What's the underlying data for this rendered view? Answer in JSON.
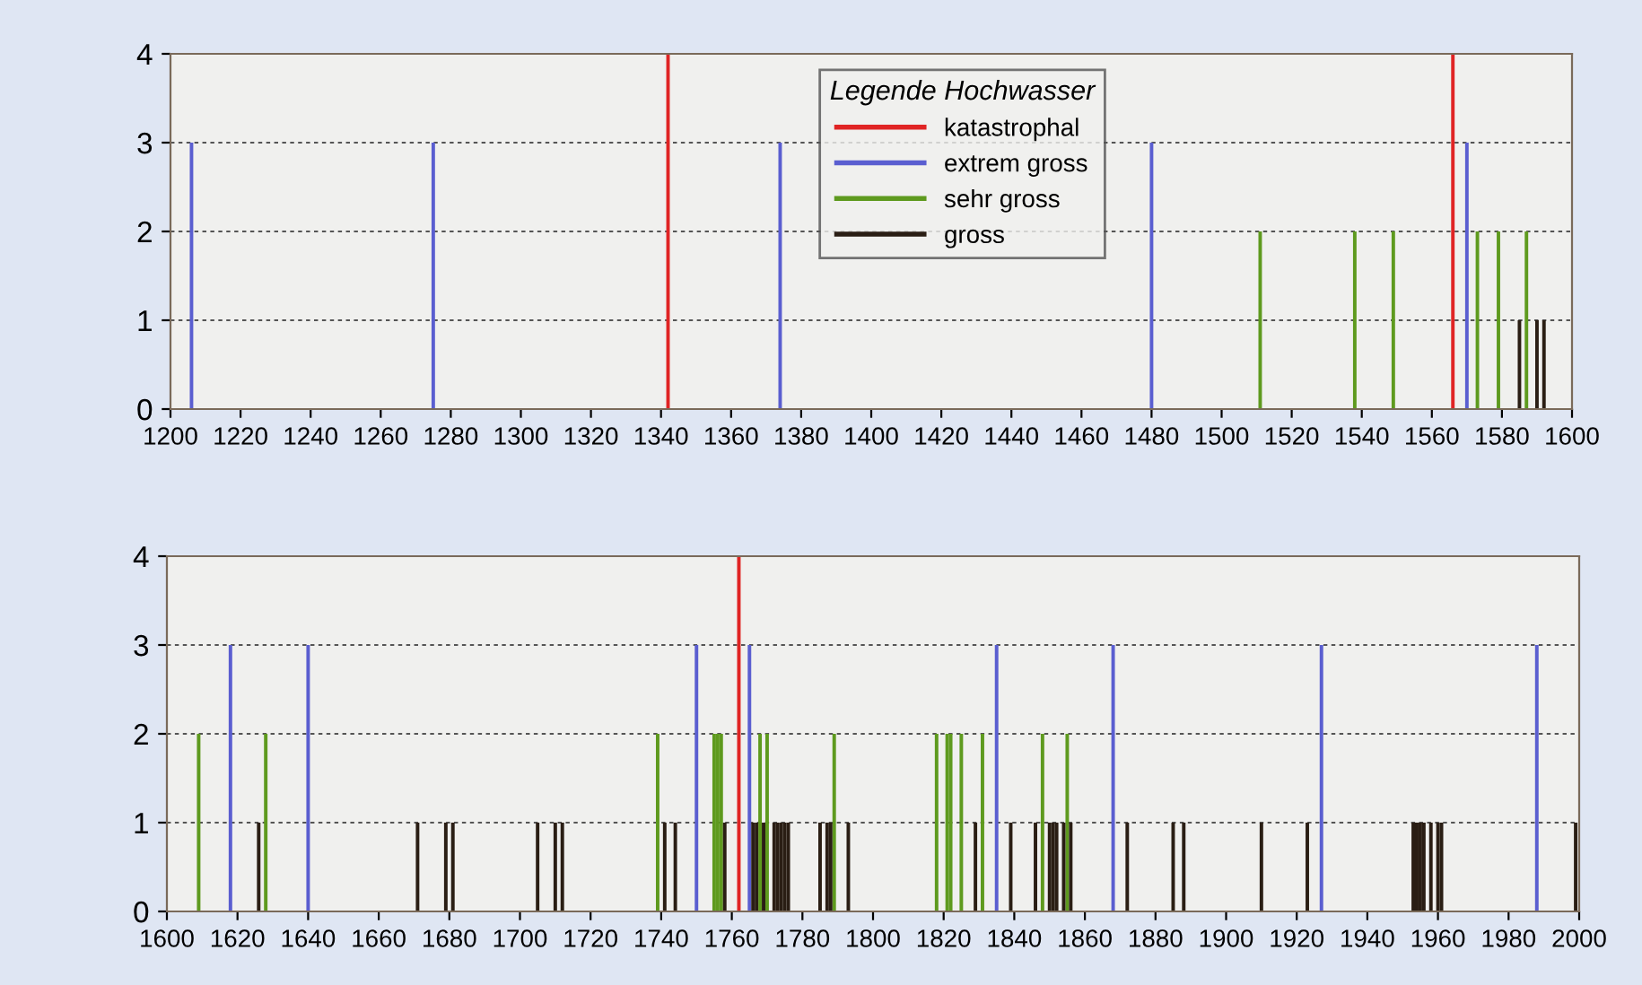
{
  "chart_data": [
    {
      "type": "bar",
      "legend_title": "Legende Hochwasser",
      "legend": "top",
      "grid": "y",
      "xlim": [
        1200,
        1600
      ],
      "xticks": [
        1200,
        1220,
        1240,
        1260,
        1280,
        1300,
        1320,
        1340,
        1360,
        1380,
        1400,
        1420,
        1440,
        1460,
        1480,
        1500,
        1520,
        1540,
        1560,
        1580,
        1600
      ],
      "ylim": [
        0,
        4
      ],
      "yticks": [
        0,
        1,
        2,
        3,
        4
      ],
      "series": [
        {
          "name": "katastrophal",
          "color": "#e02424",
          "x": [
            1342,
            1566
          ],
          "values": [
            4,
            4
          ]
        },
        {
          "name": "extrem gross",
          "color": "#5a5ed0",
          "x": [
            1206,
            1275,
            1374,
            1480,
            1570
          ],
          "values": [
            3,
            3,
            3,
            3,
            3
          ]
        },
        {
          "name": "sehr gross",
          "color": "#5e9a1e",
          "x": [
            1511,
            1538,
            1549,
            1573,
            1579,
            1587
          ],
          "values": [
            2,
            2,
            2,
            2,
            2,
            2
          ]
        },
        {
          "name": "gross",
          "color": "#2a1e14",
          "x": [
            1585,
            1590,
            1592
          ],
          "values": [
            1,
            1,
            1
          ]
        }
      ]
    },
    {
      "type": "bar",
      "grid": "y",
      "xlim": [
        1600,
        2000
      ],
      "xticks": [
        1600,
        1620,
        1640,
        1660,
        1680,
        1700,
        1720,
        1740,
        1760,
        1780,
        1800,
        1820,
        1840,
        1860,
        1880,
        1900,
        1920,
        1940,
        1960,
        1980,
        2000
      ],
      "ylim": [
        0,
        4
      ],
      "yticks": [
        0,
        1,
        2,
        3,
        4
      ],
      "series": [
        {
          "color": "#e02424",
          "x": [
            1762
          ],
          "values": [
            4
          ]
        },
        {
          "color": "#5a5ed0",
          "x": [
            1618,
            1640,
            1750,
            1765,
            1835,
            1868,
            1927,
            1988
          ],
          "values": [
            3,
            3,
            3,
            3,
            3,
            3,
            3,
            3
          ]
        },
        {
          "color": "#5e9a1e",
          "x": [
            1609,
            1628,
            1739,
            1755,
            1756,
            1757,
            1768,
            1770,
            1789,
            1818,
            1821,
            1822,
            1825,
            1831,
            1848,
            1855
          ],
          "values": [
            2,
            2,
            2,
            2,
            2,
            2,
            2,
            2,
            2,
            2,
            2,
            2,
            2,
            2,
            2,
            2
          ]
        },
        {
          "color": "#2a1e14",
          "x": [
            1626,
            1671,
            1679,
            1681,
            1705,
            1710,
            1712,
            1741,
            1744,
            1758,
            1766,
            1767,
            1769,
            1772,
            1773,
            1774,
            1775,
            1776,
            1785,
            1787,
            1788,
            1793,
            1829,
            1839,
            1846,
            1850,
            1851,
            1852,
            1854,
            1856,
            1872,
            1885,
            1888,
            1910,
            1923,
            1953,
            1954,
            1955,
            1956,
            1958,
            1960,
            1961,
            1999
          ],
          "values": [
            1,
            1,
            1,
            1,
            1,
            1,
            1,
            1,
            1,
            1,
            1,
            1,
            1,
            1,
            1,
            1,
            1,
            1,
            1,
            1,
            1,
            1,
            1,
            1,
            1,
            1,
            1,
            1,
            1,
            1,
            1,
            1,
            1,
            1,
            1,
            1,
            1,
            1,
            1,
            1,
            1,
            1,
            1
          ]
        }
      ]
    }
  ]
}
